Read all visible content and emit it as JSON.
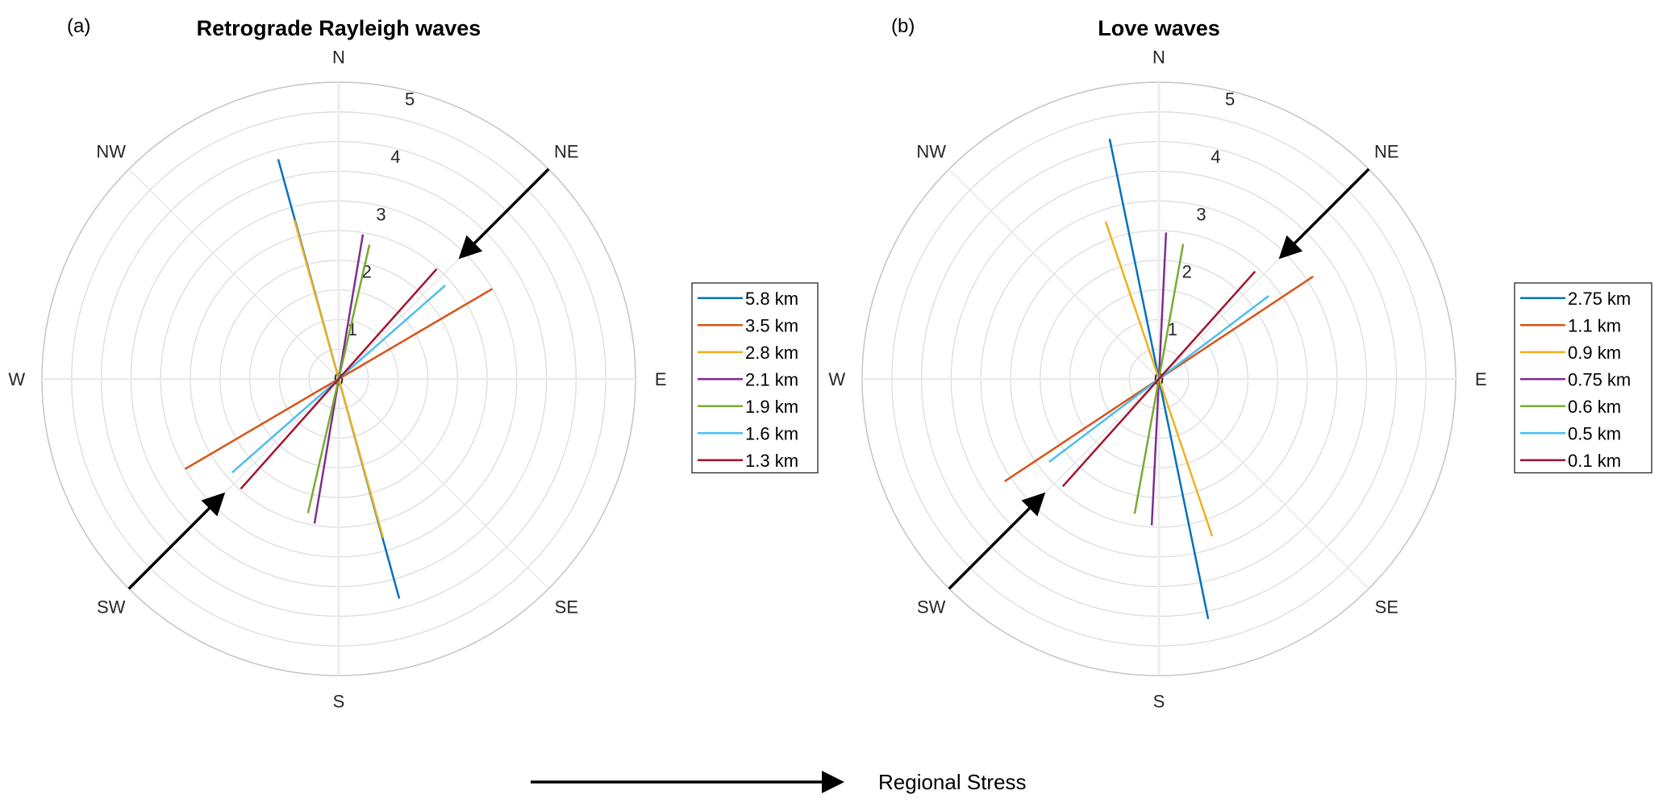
{
  "chart_data": [
    {
      "type": "polar-axial",
      "panel_label": "(a)",
      "title": "Retrograde Rayleigh waves",
      "r_ticks": [
        0,
        1,
        2,
        3,
        4,
        5
      ],
      "rlim": [
        0,
        5
      ],
      "direction_labels": [
        "N",
        "NE",
        "E",
        "SE",
        "S",
        "SW",
        "W",
        "NW"
      ],
      "legend_position": "right",
      "series": [
        {
          "name": "5.8 km",
          "color": "#0072BD",
          "azimuth_deg": 344.6,
          "magnitude": 3.84
        },
        {
          "name": "3.5 km",
          "color": "#D95319",
          "azimuth_deg": 59.6,
          "magnitude": 3.0
        },
        {
          "name": "2.8 km",
          "color": "#EDB120",
          "azimuth_deg": 344.4,
          "magnitude": 2.78
        },
        {
          "name": "2.1 km",
          "color": "#7E2F8E",
          "azimuth_deg": 9.5,
          "magnitude": 2.47
        },
        {
          "name": "1.9 km",
          "color": "#77AC30",
          "azimuth_deg": 12.9,
          "magnitude": 2.32
        },
        {
          "name": "1.6 km",
          "color": "#4DBEEE",
          "azimuth_deg": 48.7,
          "magnitude": 2.39
        },
        {
          "name": "1.3 km",
          "color": "#A2142F",
          "azimuth_deg": 41.7,
          "magnitude": 2.48
        }
      ],
      "stress_arrows": [
        {
          "azimuth_deg": 45,
          "from_r": 5,
          "to_r": 2.8
        },
        {
          "azimuth_deg": 225,
          "from_r": 5,
          "to_r": 2.65
        }
      ]
    },
    {
      "type": "polar-axial",
      "panel_label": "(b)",
      "title": "Love waves",
      "r_ticks": [
        0,
        1,
        2,
        3,
        4,
        5
      ],
      "rlim": [
        0,
        5
      ],
      "direction_labels": [
        "N",
        "NE",
        "E",
        "SE",
        "S",
        "SW",
        "W",
        "NW"
      ],
      "legend_position": "right",
      "series": [
        {
          "name": "2.75 km",
          "color": "#0072BD",
          "azimuth_deg": 348.4,
          "magnitude": 4.13
        },
        {
          "name": "1.1 km",
          "color": "#D95319",
          "azimuth_deg": 56.4,
          "magnitude": 3.12
        },
        {
          "name": "0.9 km",
          "color": "#EDB120",
          "azimuth_deg": 341.3,
          "magnitude": 2.8
        },
        {
          "name": "0.75 km",
          "color": "#7E2F8E",
          "azimuth_deg": 2.8,
          "magnitude": 2.47
        },
        {
          "name": "0.6 km",
          "color": "#77AC30",
          "azimuth_deg": 10.2,
          "magnitude": 2.31
        },
        {
          "name": "0.5 km",
          "color": "#4DBEEE",
          "azimuth_deg": 52.9,
          "magnitude": 2.32
        },
        {
          "name": "0.1 km",
          "color": "#A2142F",
          "azimuth_deg": 41.8,
          "magnitude": 2.43
        }
      ],
      "stress_arrows": [
        {
          "azimuth_deg": 45,
          "from_r": 5,
          "to_r": 2.8
        },
        {
          "azimuth_deg": 225,
          "from_r": 5,
          "to_r": 2.65
        }
      ]
    }
  ],
  "footer": {
    "legend_label": "Regional Stress",
    "arrow_color": "#000000"
  }
}
